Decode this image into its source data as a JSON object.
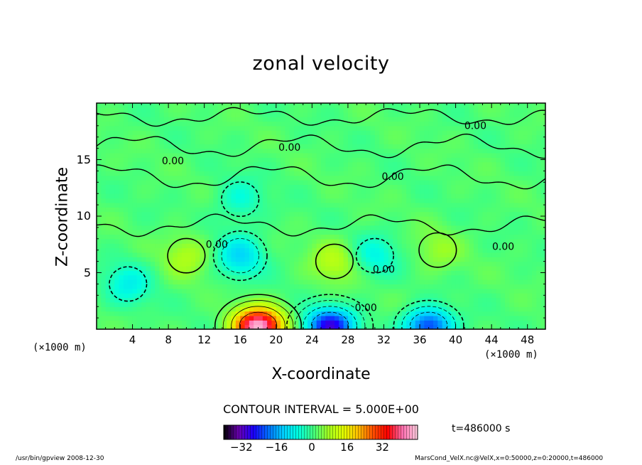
{
  "chart_data": {
    "type": "heatmap",
    "title": "zonal velocity",
    "xlabel": "X-coordinate",
    "ylabel": "Z-coordinate",
    "x_unit_label": "(×1000 m)",
    "x_ticks": [
      4,
      8,
      12,
      16,
      20,
      24,
      28,
      32,
      36,
      40,
      44,
      48
    ],
    "y_ticks": [
      5,
      10,
      15
    ],
    "xlim": [
      0,
      50
    ],
    "ylim": [
      0,
      20
    ],
    "contour_interval_label": "CONTOUR INTERVAL = 5.000E+00",
    "contour_label_value": "0.00",
    "contour_labels": [
      {
        "x": 8.5,
        "z": 14.6,
        "text": "0.00"
      },
      {
        "x": 21.5,
        "z": 15.8,
        "text": "0.00"
      },
      {
        "x": 42.2,
        "z": 17.7,
        "text": "0.00"
      },
      {
        "x": 33.0,
        "z": 13.2,
        "text": "0.00"
      },
      {
        "x": 13.4,
        "z": 7.2,
        "text": "0.00"
      },
      {
        "x": 32.0,
        "z": 5.0,
        "text": "0.00"
      },
      {
        "x": 45.3,
        "z": 7.0,
        "text": "0.00"
      },
      {
        "x": 30.0,
        "z": 1.6,
        "text": "0.00"
      }
    ],
    "features": [
      {
        "x": 18,
        "z": 0.3,
        "value": 45,
        "sign": "positive"
      },
      {
        "x": 26,
        "z": 0.3,
        "value": -30,
        "sign": "negative"
      },
      {
        "x": 37,
        "z": 0.3,
        "value": -25,
        "sign": "negative"
      },
      {
        "x": 16,
        "z": 6.5,
        "value": -12,
        "sign": "negative"
      },
      {
        "x": 26.5,
        "z": 6.0,
        "value": 8,
        "sign": "positive"
      },
      {
        "x": 31,
        "z": 6.5,
        "value": -8,
        "sign": "negative"
      },
      {
        "x": 3.5,
        "z": 4.0,
        "value": -9,
        "sign": "negative"
      },
      {
        "x": 10,
        "z": 6.5,
        "value": 7,
        "sign": "positive"
      },
      {
        "x": 38,
        "z": 7.0,
        "value": 5,
        "sign": "positive"
      },
      {
        "x": 16,
        "z": 11.5,
        "value": -7,
        "sign": "negative"
      }
    ],
    "colorbar": {
      "ticks": [
        -32,
        -16,
        0,
        16,
        32
      ],
      "range": [
        -40,
        48
      ],
      "colors": [
        "#000000",
        "#6a00b0",
        "#1a00ff",
        "#0070ff",
        "#00d0ff",
        "#00ffe0",
        "#40ff80",
        "#a0ff20",
        "#e0ff00",
        "#ffc000",
        "#ff5000",
        "#ff0000",
        "#ff70b0",
        "#ffd0e0"
      ]
    }
  },
  "time_label": "t=486000 s",
  "footer": {
    "left": "/usr/bin/gpview   2008-12-30",
    "right": "MarsCond_VelX.nc@VelX,x=0:50000,z=0:20000,t=486000"
  }
}
